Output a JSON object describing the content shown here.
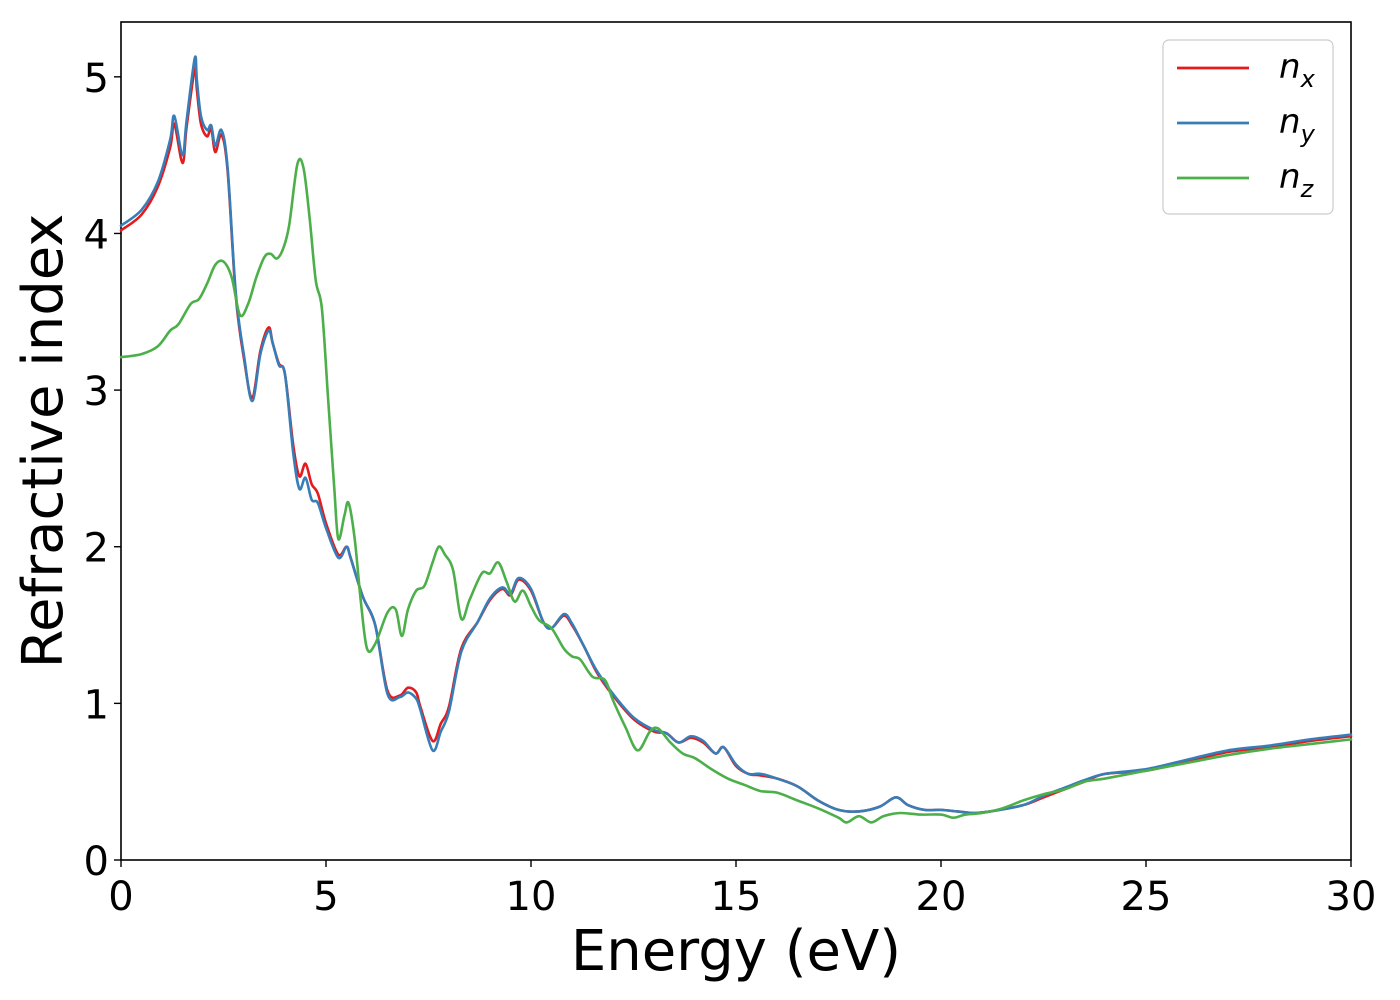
{
  "chart_data": {
    "type": "line",
    "title": "",
    "xlabel": "Energy (eV)",
    "ylabel": "Refractive index",
    "xlim": [
      0,
      30
    ],
    "ylim": [
      0,
      5.35
    ],
    "xticks": [
      0,
      5,
      10,
      15,
      20,
      25,
      30
    ],
    "yticks": [
      0,
      1,
      2,
      3,
      4,
      5
    ],
    "grid": false,
    "legend_position": "top-right",
    "series": [
      {
        "name": "n_x",
        "label_base": "n",
        "label_sub": "x",
        "color": "#e41a1c",
        "x": [
          0,
          0.5,
          0.9,
          1.2,
          1.3,
          1.5,
          1.6,
          1.8,
          1.85,
          1.95,
          2.1,
          2.2,
          2.3,
          2.45,
          2.6,
          2.8,
          3.0,
          3.2,
          3.4,
          3.6,
          3.7,
          3.85,
          4.0,
          4.2,
          4.35,
          4.5,
          4.65,
          4.8,
          5.0,
          5.3,
          5.5,
          5.6,
          5.9,
          6.2,
          6.5,
          6.8,
          7.0,
          7.2,
          7.3,
          7.6,
          7.8,
          8.0,
          8.3,
          8.7,
          9.0,
          9.3,
          9.5,
          9.7,
          10.0,
          10.3,
          10.5,
          10.8,
          11.0,
          11.3,
          11.6,
          12.0,
          12.5,
          13.0,
          13.3,
          13.6,
          13.9,
          14.2,
          14.5,
          14.7,
          15.0,
          15.3,
          15.6,
          16.0,
          16.5,
          17.0,
          17.5,
          18.0,
          18.5,
          18.9,
          19.2,
          19.6,
          20.0,
          20.4,
          20.8,
          21.2,
          22.0,
          22.5,
          23.0,
          23.5,
          24.0,
          25.0,
          26.0,
          27.0,
          28.0,
          29.0,
          30.0
        ],
        "y": [
          4.02,
          4.12,
          4.3,
          4.55,
          4.7,
          4.45,
          4.68,
          5.05,
          4.92,
          4.7,
          4.62,
          4.67,
          4.52,
          4.63,
          4.4,
          3.6,
          3.2,
          2.95,
          3.25,
          3.4,
          3.3,
          3.17,
          3.1,
          2.65,
          2.45,
          2.53,
          2.4,
          2.34,
          2.15,
          1.95,
          2.0,
          1.93,
          1.68,
          1.5,
          1.08,
          1.05,
          1.1,
          1.07,
          0.98,
          0.76,
          0.87,
          0.98,
          1.35,
          1.52,
          1.66,
          1.73,
          1.69,
          1.79,
          1.72,
          1.52,
          1.48,
          1.56,
          1.5,
          1.36,
          1.2,
          1.05,
          0.9,
          0.82,
          0.81,
          0.75,
          0.78,
          0.75,
          0.68,
          0.72,
          0.6,
          0.55,
          0.54,
          0.52,
          0.47,
          0.38,
          0.32,
          0.31,
          0.34,
          0.4,
          0.35,
          0.32,
          0.32,
          0.31,
          0.3,
          0.31,
          0.35,
          0.4,
          0.45,
          0.5,
          0.55,
          0.57,
          0.63,
          0.69,
          0.72,
          0.76,
          0.79
        ]
      },
      {
        "name": "n_y",
        "label_base": "n",
        "label_sub": "y",
        "color": "#377eb8",
        "x": [
          0,
          0.5,
          0.9,
          1.2,
          1.3,
          1.5,
          1.6,
          1.8,
          1.85,
          1.95,
          2.1,
          2.2,
          2.3,
          2.45,
          2.6,
          2.8,
          3.0,
          3.2,
          3.4,
          3.6,
          3.7,
          3.85,
          4.0,
          4.2,
          4.35,
          4.5,
          4.65,
          4.8,
          5.0,
          5.3,
          5.5,
          5.6,
          5.9,
          6.2,
          6.5,
          6.8,
          7.0,
          7.2,
          7.3,
          7.6,
          7.8,
          8.0,
          8.3,
          8.7,
          9.0,
          9.3,
          9.5,
          9.7,
          10.0,
          10.3,
          10.5,
          10.8,
          11.0,
          11.3,
          11.6,
          12.0,
          12.5,
          13.0,
          13.3,
          13.6,
          13.9,
          14.2,
          14.5,
          14.7,
          15.0,
          15.3,
          15.6,
          16.0,
          16.5,
          17.0,
          17.5,
          18.0,
          18.5,
          18.9,
          19.2,
          19.6,
          20.0,
          20.4,
          20.8,
          21.2,
          22.0,
          22.5,
          23.0,
          23.5,
          24.0,
          25.0,
          26.0,
          27.0,
          28.0,
          29.0,
          30.0
        ],
        "y": [
          4.05,
          4.15,
          4.33,
          4.6,
          4.75,
          4.5,
          4.72,
          5.12,
          4.98,
          4.75,
          4.66,
          4.69,
          4.56,
          4.66,
          4.42,
          3.62,
          3.22,
          2.93,
          3.23,
          3.38,
          3.3,
          3.16,
          3.1,
          2.6,
          2.37,
          2.44,
          2.3,
          2.28,
          2.12,
          1.93,
          2.0,
          1.93,
          1.68,
          1.5,
          1.06,
          1.04,
          1.07,
          1.03,
          0.96,
          0.7,
          0.82,
          0.95,
          1.33,
          1.52,
          1.67,
          1.74,
          1.7,
          1.8,
          1.73,
          1.52,
          1.48,
          1.57,
          1.51,
          1.36,
          1.21,
          1.06,
          0.91,
          0.83,
          0.81,
          0.75,
          0.79,
          0.76,
          0.68,
          0.72,
          0.61,
          0.55,
          0.55,
          0.52,
          0.47,
          0.38,
          0.32,
          0.31,
          0.34,
          0.4,
          0.35,
          0.32,
          0.32,
          0.31,
          0.3,
          0.31,
          0.35,
          0.41,
          0.46,
          0.51,
          0.55,
          0.58,
          0.64,
          0.7,
          0.73,
          0.77,
          0.8
        ]
      },
      {
        "name": "n_z",
        "label_base": "n",
        "label_sub": "z",
        "color": "#4daf4a",
        "x": [
          0,
          0.5,
          0.9,
          1.2,
          1.4,
          1.7,
          1.9,
          2.1,
          2.3,
          2.5,
          2.7,
          2.9,
          3.1,
          3.3,
          3.5,
          3.65,
          3.8,
          3.95,
          4.1,
          4.3,
          4.45,
          4.6,
          4.75,
          4.9,
          5.05,
          5.2,
          5.3,
          5.45,
          5.55,
          5.7,
          5.85,
          6.0,
          6.2,
          6.5,
          6.7,
          6.85,
          7.0,
          7.2,
          7.4,
          7.6,
          7.75,
          7.9,
          8.1,
          8.3,
          8.5,
          8.8,
          9.0,
          9.2,
          9.4,
          9.6,
          9.8,
          10.0,
          10.2,
          10.5,
          10.8,
          11.0,
          11.2,
          11.5,
          11.8,
          12.0,
          12.3,
          12.6,
          12.9,
          13.1,
          13.4,
          13.7,
          14.0,
          14.4,
          14.8,
          15.2,
          15.6,
          16.0,
          16.5,
          17.0,
          17.5,
          17.7,
          18.0,
          18.3,
          18.6,
          19.0,
          19.5,
          20.0,
          20.3,
          20.6,
          21.0,
          21.5,
          22.0,
          22.5,
          23.0,
          23.5,
          24.0,
          25.0,
          26.0,
          27.0,
          28.0,
          29.0,
          30.0
        ],
        "y": [
          3.21,
          3.23,
          3.28,
          3.38,
          3.42,
          3.55,
          3.58,
          3.68,
          3.8,
          3.82,
          3.72,
          3.48,
          3.55,
          3.72,
          3.85,
          3.87,
          3.84,
          3.9,
          4.05,
          4.44,
          4.42,
          4.1,
          3.7,
          3.52,
          2.95,
          2.38,
          2.05,
          2.2,
          2.28,
          2.05,
          1.65,
          1.35,
          1.38,
          1.58,
          1.6,
          1.43,
          1.6,
          1.72,
          1.75,
          1.9,
          2.0,
          1.95,
          1.85,
          1.54,
          1.66,
          1.83,
          1.83,
          1.9,
          1.78,
          1.65,
          1.72,
          1.62,
          1.53,
          1.48,
          1.35,
          1.3,
          1.28,
          1.17,
          1.15,
          1.02,
          0.85,
          0.7,
          0.82,
          0.84,
          0.75,
          0.68,
          0.65,
          0.58,
          0.52,
          0.48,
          0.44,
          0.43,
          0.38,
          0.33,
          0.27,
          0.24,
          0.28,
          0.24,
          0.28,
          0.3,
          0.29,
          0.29,
          0.27,
          0.29,
          0.3,
          0.33,
          0.38,
          0.42,
          0.45,
          0.5,
          0.52,
          0.57,
          0.62,
          0.67,
          0.71,
          0.74,
          0.77
        ]
      }
    ]
  }
}
